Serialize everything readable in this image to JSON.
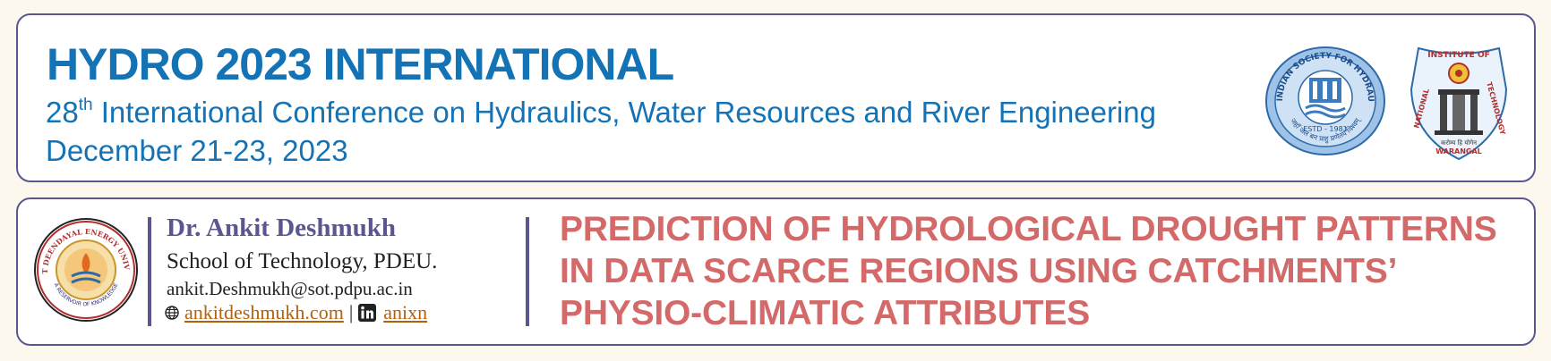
{
  "conference": {
    "title": "HYDRO 2023 INTERNATIONAL",
    "ordinal_number": "28",
    "ordinal_suffix": "th",
    "subtitle": "International Conference on Hydraulics, Water Resources and River Engineering",
    "dates": "December 21-23, 2023",
    "logos": {
      "ish_text": "THE INDIAN SOCIETY FOR HYDRAULICS",
      "ish_estd": "ESTD - 1981",
      "ish_motto": "जहाँ जल बन प्राहु प्रणेतयं विश्वम्",
      "nit_top": "INSTITUTE OF",
      "nit_left": "NATIONAL",
      "nit_right": "TECHNOLOGY",
      "nit_bottom": "WARANGAL",
      "nit_motto": "करोम्य हि योगेन"
    }
  },
  "presenter": {
    "name": "Dr. Ankit Deshmukh",
    "affiliation": "School of Technology, PDEU.",
    "email": "ankit.Deshmukh@sot.pdpu.ac.in",
    "website": "ankitdeshmukh.com",
    "linkedin": "anixn",
    "seal_text": "PANDIT DEENDAYAL ENERGY UNIVERSITY",
    "seal_motto": "A RESERVOIR OF KNOWLEDGE"
  },
  "talk": {
    "title_line1": "PREDICTION OF HYDROLOGICAL DROUGHT PATTERNS",
    "title_line2": "IN DATA SCARCE REGIONS USING CATCHMENTS’",
    "title_line3": "PHYSIO-CLIMATIC ATTRIBUTES"
  },
  "colors": {
    "background": "#fdf8ee",
    "border": "#5a5790",
    "conference_blue": "#1473b5",
    "talk_title": "#d4696a",
    "link": "#b4600c"
  },
  "icons": [
    "globe-icon",
    "linkedin-icon"
  ]
}
